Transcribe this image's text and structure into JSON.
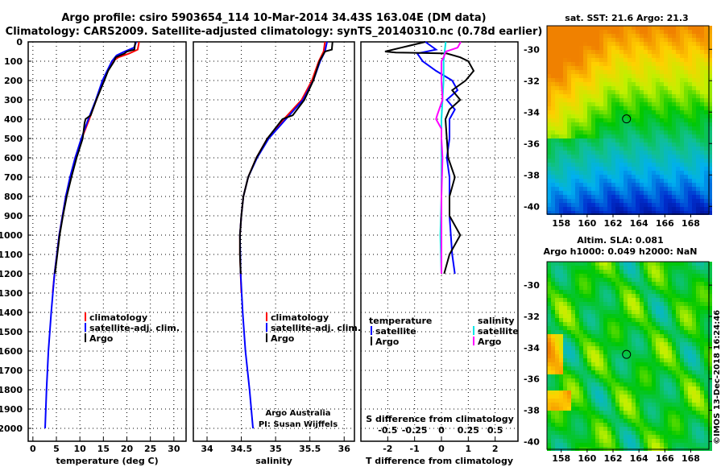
{
  "title_line1": "Argo profile: csiro 5903654_114 10-Mar-2014 34.43S 163.04E (DM data)",
  "title_line2": "Climatology: CARS2009. Satellite-adjusted climatology: synTS_20140310.nc (0.78d earlier)",
  "footer": "©IMOS 13-Dec-2018 16:24:46",
  "colors": {
    "climatology": "#ff0000",
    "satellite": "#0000ff",
    "argo": "#000000",
    "sal_satellite": "#00e5e5",
    "sal_argo": "#ff00ff"
  },
  "chart_data": [
    {
      "type": "line",
      "xlabel": "temperature (deg C)",
      "ylabel": "",
      "xlim": [
        -1,
        32.6
      ],
      "ylim": [
        2070,
        0
      ],
      "xticks": [
        "0",
        "5",
        "10",
        "15",
        "20",
        "25",
        "30"
      ],
      "yticks": [
        "0",
        "100",
        "200",
        "300",
        "400",
        "500",
        "600",
        "700",
        "800",
        "900",
        "1000",
        "1100",
        "1200",
        "1300",
        "1400",
        "1500",
        "1600",
        "1700",
        "1800",
        "1900",
        "2000"
      ],
      "legend": [
        "climatology",
        "satellite-adj. clim.",
        "Argo"
      ],
      "series": [
        {
          "name": "climatology",
          "depth": [
            0,
            40,
            60,
            80,
            100,
            200,
            300,
            400,
            500,
            600,
            700,
            800,
            900,
            1000,
            1100,
            1200,
            1300
          ],
          "values": [
            22.6,
            22.3,
            20.5,
            18.2,
            17,
            15,
            13.5,
            12,
            10.4,
            9,
            8,
            7,
            6.3,
            5.6,
            5.1,
            4.6,
            4.2
          ]
        },
        {
          "name": "satellite-adj. clim.",
          "depth": [
            0,
            30,
            50,
            70,
            100,
            200,
            300,
            400,
            500,
            600,
            700,
            800,
            900,
            1000,
            1200,
            1400,
            1600,
            1800,
            2000
          ],
          "values": [
            22,
            21.5,
            19.5,
            17.8,
            16.8,
            14.8,
            13.4,
            11.8,
            10.3,
            9,
            7.9,
            7,
            6.3,
            5.6,
            4.6,
            3.9,
            3.3,
            2.9,
            2.6
          ]
        },
        {
          "name": "Argo",
          "depth": [
            0,
            40,
            50,
            60,
            80,
            100,
            150,
            200,
            300,
            380,
            400,
            420,
            500,
            600,
            700,
            800,
            900,
            1000,
            1100,
            1200
          ],
          "values": [
            21.8,
            21.6,
            20,
            19.5,
            17.6,
            17.3,
            16,
            15.2,
            13.5,
            12.3,
            11.2,
            11,
            10.6,
            9.3,
            8.2,
            7.2,
            6.4,
            5.7,
            5.2,
            4.7
          ]
        }
      ]
    },
    {
      "type": "line",
      "xlabel": "salinity",
      "xlim": [
        33.8,
        36.15
      ],
      "ylim": [
        2070,
        0
      ],
      "xticks": [
        "34",
        "34.5",
        "35",
        "35.5",
        "36"
      ],
      "legend": [
        "climatology",
        "satellite-adj. clim.",
        "Argo"
      ],
      "annotation": [
        "Argo Australia",
        "PI: Susan Wijffels"
      ],
      "series": [
        {
          "name": "climatology",
          "depth": [
            0,
            50,
            100,
            200,
            300,
            400,
            500,
            600,
            700,
            800,
            900,
            1000,
            1100,
            1200,
            1300
          ],
          "values": [
            35.72,
            35.7,
            35.63,
            35.53,
            35.38,
            35.12,
            34.88,
            34.72,
            34.6,
            34.53,
            34.5,
            34.48,
            34.48,
            34.49,
            34.5
          ]
        },
        {
          "name": "satellite-adj. clim.",
          "depth": [
            0,
            50,
            100,
            200,
            300,
            400,
            500,
            600,
            700,
            800,
            900,
            1000,
            1200,
            1400,
            1600,
            1800,
            2000
          ],
          "values": [
            35.75,
            35.72,
            35.65,
            35.55,
            35.4,
            35.15,
            34.9,
            34.73,
            34.6,
            34.53,
            34.5,
            34.48,
            34.49,
            34.52,
            34.56,
            34.62,
            34.67
          ]
        },
        {
          "name": "Argo",
          "depth": [
            0,
            40,
            50,
            100,
            200,
            300,
            380,
            400,
            500,
            600,
            700,
            800,
            900,
            1000,
            1100,
            1200
          ],
          "values": [
            35.83,
            35.82,
            35.72,
            35.64,
            35.55,
            35.42,
            35.25,
            35.1,
            34.88,
            34.72,
            34.6,
            34.53,
            34.5,
            34.48,
            34.48,
            34.49
          ]
        }
      ]
    },
    {
      "type": "line",
      "xlabel": "T difference from climatology",
      "xlabel2": "S difference from climatology",
      "xlim": [
        -3,
        2.85
      ],
      "ylim": [
        2070,
        0
      ],
      "xticks": [
        "-2",
        "-1",
        "0",
        "1",
        "2"
      ],
      "xticks2": [
        "-0.5",
        "-0.25",
        "0",
        "0.25",
        "0.5"
      ],
      "legend": {
        "temperature_title": "temperature",
        "salinity_title": "salinity",
        "items": [
          "satellite",
          "Argo",
          "satellite",
          "Argo"
        ]
      },
      "series": [
        {
          "name": "T satellite",
          "depth": [
            0,
            40,
            60,
            100,
            150,
            200,
            250,
            300,
            350,
            400,
            500,
            600,
            700,
            800,
            900,
            1000,
            1100,
            1200
          ],
          "values": [
            -0.6,
            -0.2,
            -0.9,
            -0.7,
            -0.2,
            0.4,
            0.6,
            0.2,
            0.5,
            0.3,
            0.3,
            0.2,
            0.3,
            0.3,
            0.3,
            0.35,
            0.4,
            0.5
          ]
        },
        {
          "name": "T Argo",
          "depth": [
            0,
            30,
            50,
            55,
            60,
            80,
            100,
            150,
            200,
            250,
            300,
            350,
            400,
            500,
            600,
            700,
            800,
            900,
            1000,
            1050,
            1100,
            1200
          ],
          "values": [
            -0.6,
            -1.5,
            -2.1,
            -1.7,
            0.2,
            0.7,
            1,
            1.2,
            0.9,
            0.4,
            0.7,
            0.3,
            0.15,
            0.2,
            0.25,
            0.5,
            0.3,
            0.3,
            0.7,
            0.5,
            0.3,
            0.1
          ]
        },
        {
          "name": "S satellite",
          "depth": [
            0,
            50,
            100,
            200,
            300,
            400,
            600,
            800,
            1000,
            1200
          ],
          "values": [
            0.04,
            0.03,
            0.02,
            0.02,
            0.01,
            0.0,
            0.0,
            0.0,
            -0.01,
            0.0
          ]
        },
        {
          "name": "S Argo",
          "depth": [
            0,
            30,
            50,
            80,
            100,
            200,
            300,
            380,
            400,
            450,
            500,
            600,
            800,
            1000,
            1200
          ],
          "values": [
            0.18,
            0.15,
            0.04,
            0.02,
            0.0,
            0.0,
            0.01,
            -0.04,
            -0.05,
            0.0,
            0.0,
            0.01,
            0.0,
            0.0,
            0.0
          ]
        }
      ]
    },
    {
      "type": "heatmap",
      "title": "sat. SST: 21.6 Argo: 21.3",
      "xticks": [
        "158",
        "160",
        "162",
        "164",
        "166",
        "168"
      ],
      "yticks": [
        "-30",
        "-32",
        "-34",
        "-36",
        "-38",
        "-40"
      ],
      "marker": {
        "lon": 163.04,
        "lat": -34.43
      }
    },
    {
      "type": "heatmap",
      "title_line1": "Altim. SLA: 0.081",
      "title_line2": "Argo h1000: 0.049 h2000: NaN",
      "xticks": [
        "158",
        "160",
        "162",
        "164",
        "166",
        "168"
      ],
      "yticks": [
        "-30",
        "-32",
        "-34",
        "-36",
        "-38",
        "-40"
      ],
      "marker": {
        "lon": 163.04,
        "lat": -34.43
      }
    }
  ]
}
